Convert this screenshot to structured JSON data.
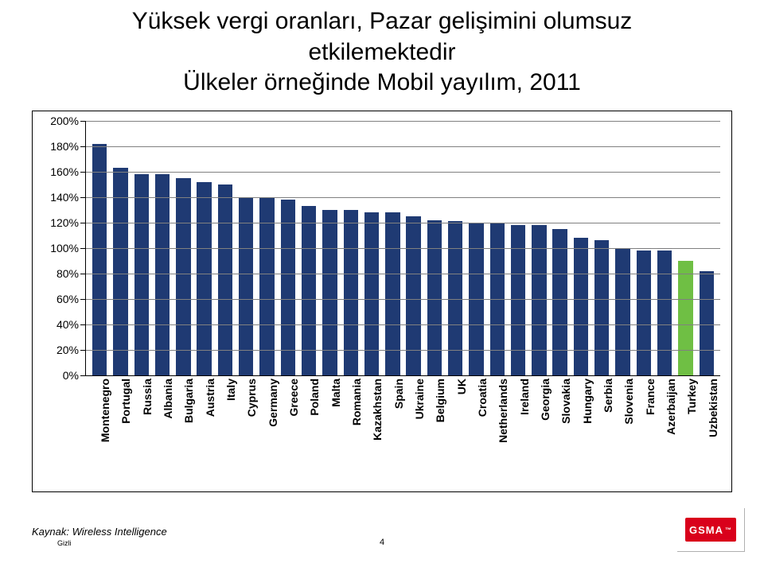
{
  "title_line1": "Yüksek vergi oranları, Pazar gelişimini olumsuz",
  "title_line2": "etkilemektedir",
  "subtitle": "Ülkeler örneğinde Mobil yayılım, 2011",
  "footer_source": "Kaynak: Wireless Intelligence",
  "confidential": "Gizli",
  "page_number": "4",
  "logo_text": "GSMA",
  "chart": {
    "type": "bar",
    "ylim": [
      0,
      200
    ],
    "ytick_step": 20,
    "ytick_suffix": "%",
    "background_color": "#ffffff",
    "grid_color": "#808080",
    "axis_color": "#000000",
    "label_fontsize": 14,
    "bar_width": 0.7,
    "bar_color_default": "#1f3a73",
    "bar_color_highlight": "#6fbf44",
    "categories": [
      "Montenegro",
      "Portugal",
      "Russia",
      "Albania",
      "Bulgaria",
      "Austria",
      "Italy",
      "Cyprus",
      "Germany",
      "Greece",
      "Poland",
      "Malta",
      "Romania",
      "Kazakhstan",
      "Spain",
      "Ukraine",
      "Belgium",
      "UK",
      "Croatia",
      "Netherlands",
      "Ireland",
      "Georgia",
      "Slovakia",
      "Hungary",
      "Serbia",
      "Slovenia",
      "France",
      "Azerbaijan",
      "Turkey",
      "Uzbekistan"
    ],
    "values": [
      182,
      163,
      158,
      158,
      155,
      152,
      150,
      140,
      140,
      138,
      133,
      130,
      130,
      128,
      128,
      125,
      122,
      121,
      120,
      120,
      118,
      118,
      115,
      108,
      106,
      100,
      98,
      98,
      90,
      82
    ],
    "highlight_index": 28
  }
}
